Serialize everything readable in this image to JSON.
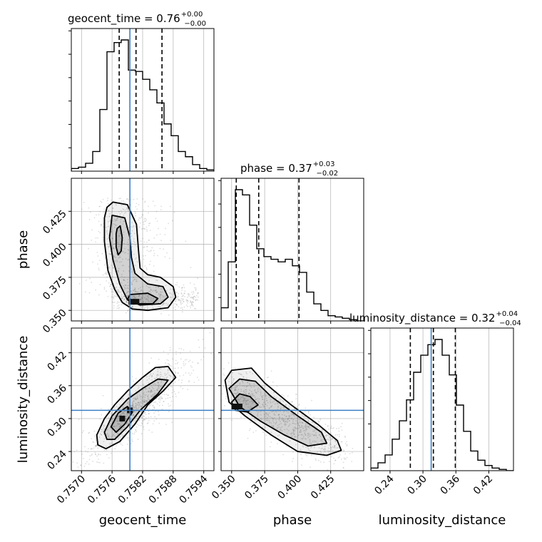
{
  "colors": {
    "truth": "#3b7fc4",
    "hist": "#000000",
    "grid": "#b0b0b0",
    "scatter": "#7a7a7a"
  },
  "parameters": [
    "geocent_time",
    "phase",
    "luminosity_distance"
  ],
  "titles": [
    {
      "text": "geocent_time = 0.76",
      "sup": "+0.00",
      "sub": "−0.00"
    },
    {
      "text": "phase = 0.37",
      "sup": "+0.03",
      "sub": "−0.02"
    },
    {
      "text": "luminosity_distance = 0.32",
      "sup": "+0.04",
      "sub": "−0.04"
    }
  ],
  "axis_labels": {
    "x": [
      "geocent_time",
      "phase",
      "luminosity_distance"
    ],
    "y": [
      "phase",
      "luminosity_distance"
    ]
  },
  "chart_data": {
    "type": "corner",
    "grid": true,
    "parameters": [
      {
        "name": "geocent_time",
        "range": [
          0.7568,
          0.7596
        ],
        "ticks": [
          0.757,
          0.7576,
          0.7582,
          0.7588,
          0.7594
        ],
        "tick_labels": [
          "0.7570",
          "0.7576",
          "0.7582",
          "0.7588",
          "0.7594"
        ],
        "truth": 0.75795,
        "quantiles": [
          0.75774,
          0.75807,
          0.75858
        ],
        "hist": [
          0.02,
          0.03,
          0.06,
          0.15,
          0.47,
          0.91,
          0.98,
          1.0,
          0.77,
          0.76,
          0.7,
          0.62,
          0.52,
          0.36,
          0.27,
          0.15,
          0.11,
          0.05,
          0.02,
          0.01
        ]
      },
      {
        "name": "phase",
        "range": [
          0.342,
          0.45
        ],
        "ticks": [
          0.35,
          0.375,
          0.4,
          0.425
        ],
        "tick_labels": [
          "0.350",
          "0.375",
          "0.400",
          "0.425"
        ],
        "quantiles": [
          0.3535,
          0.3705,
          0.401
        ],
        "hist": [
          0.1,
          0.45,
          1.0,
          0.96,
          0.73,
          0.55,
          0.49,
          0.47,
          0.45,
          0.47,
          0.42,
          0.37,
          0.22,
          0.13,
          0.08,
          0.04,
          0.03,
          0.02,
          0.01,
          0.0
        ]
      },
      {
        "name": "luminosity_distance",
        "range": [
          0.205,
          0.465
        ],
        "ticks": [
          0.24,
          0.3,
          0.36,
          0.42
        ],
        "tick_labels": [
          "0.24",
          "0.30",
          "0.36",
          "0.42"
        ],
        "truth": 0.315,
        "quantiles": [
          0.277,
          0.319,
          0.359
        ],
        "hist": [
          0.02,
          0.06,
          0.12,
          0.24,
          0.38,
          0.54,
          0.75,
          0.88,
          0.96,
          1.0,
          0.88,
          0.73,
          0.5,
          0.3,
          0.15,
          0.08,
          0.04,
          0.02,
          0.01,
          0.0
        ]
      }
    ],
    "joint": [
      {
        "x": "geocent_time",
        "y": "phase",
        "contours": [
          [
            [
              0.7575,
              0.428
            ],
            [
              0.75762,
              0.432
            ],
            [
              0.7579,
              0.43
            ],
            [
              0.75808,
              0.415
            ],
            [
              0.75812,
              0.395
            ],
            [
              0.75815,
              0.382
            ],
            [
              0.7583,
              0.377
            ],
            [
              0.75855,
              0.375
            ],
            [
              0.7588,
              0.368
            ],
            [
              0.75885,
              0.36
            ],
            [
              0.7587,
              0.352
            ],
            [
              0.7583,
              0.35
            ],
            [
              0.758,
              0.351
            ],
            [
              0.7578,
              0.356
            ],
            [
              0.75765,
              0.366
            ],
            [
              0.75752,
              0.38
            ],
            [
              0.75745,
              0.402
            ],
            [
              0.75745,
              0.42
            ]
          ],
          [
            [
              0.7576,
              0.422
            ],
            [
              0.75785,
              0.42
            ],
            [
              0.75795,
              0.405
            ],
            [
              0.75798,
              0.39
            ],
            [
              0.75805,
              0.378
            ],
            [
              0.7583,
              0.37
            ],
            [
              0.7586,
              0.368
            ],
            [
              0.7587,
              0.36
            ],
            [
              0.75855,
              0.355
            ],
            [
              0.75815,
              0.354
            ],
            [
              0.7579,
              0.358
            ],
            [
              0.75775,
              0.37
            ],
            [
              0.75762,
              0.388
            ],
            [
              0.75755,
              0.405
            ]
          ],
          [
            [
              0.7577,
              0.412
            ],
            [
              0.75776,
              0.414
            ],
            [
              0.7578,
              0.405
            ],
            [
              0.75778,
              0.395
            ],
            [
              0.75772,
              0.392
            ],
            [
              0.75768,
              0.398
            ],
            [
              0.75768,
              0.408
            ]
          ],
          [
            [
              0.75795,
              0.362
            ],
            [
              0.7583,
              0.363
            ],
            [
              0.7585,
              0.359
            ],
            [
              0.7584,
              0.355
            ],
            [
              0.75805,
              0.355
            ],
            [
              0.7579,
              0.358
            ]
          ]
        ]
      },
      {
        "x": "geocent_time",
        "y": "luminosity_distance",
        "contours": [
          [
            [
              0.7573,
              0.27
            ],
            [
              0.75745,
              0.3
            ],
            [
              0.75765,
              0.325
            ],
            [
              0.7579,
              0.35
            ],
            [
              0.7582,
              0.375
            ],
            [
              0.75845,
              0.393
            ],
            [
              0.7587,
              0.395
            ],
            [
              0.75885,
              0.375
            ],
            [
              0.7586,
              0.35
            ],
            [
              0.7583,
              0.325
            ],
            [
              0.75805,
              0.29
            ],
            [
              0.75775,
              0.258
            ],
            [
              0.75748,
              0.245
            ],
            [
              0.75732,
              0.252
            ]
          ],
          [
            [
              0.75745,
              0.275
            ],
            [
              0.7576,
              0.305
            ],
            [
              0.7579,
              0.335
            ],
            [
              0.7582,
              0.355
            ],
            [
              0.7585,
              0.372
            ],
            [
              0.7587,
              0.37
            ],
            [
              0.7585,
              0.345
            ],
            [
              0.75815,
              0.315
            ],
            [
              0.7579,
              0.285
            ],
            [
              0.75765,
              0.262
            ],
            [
              0.7575,
              0.262
            ]
          ],
          [
            [
              0.75758,
              0.285
            ],
            [
              0.75772,
              0.31
            ],
            [
              0.7579,
              0.322
            ],
            [
              0.758,
              0.312
            ],
            [
              0.75785,
              0.29
            ],
            [
              0.75768,
              0.275
            ]
          ]
        ]
      },
      {
        "x": "phase",
        "y": "luminosity_distance",
        "contours": [
          [
            [
              0.345,
              0.37
            ],
            [
              0.35,
              0.388
            ],
            [
              0.365,
              0.392
            ],
            [
              0.375,
              0.365
            ],
            [
              0.395,
              0.325
            ],
            [
              0.415,
              0.29
            ],
            [
              0.43,
              0.26
            ],
            [
              0.433,
              0.242
            ],
            [
              0.422,
              0.233
            ],
            [
              0.4,
              0.24
            ],
            [
              0.38,
              0.27
            ],
            [
              0.36,
              0.305
            ],
            [
              0.348,
              0.33
            ]
          ],
          [
            [
              0.348,
              0.355
            ],
            [
              0.356,
              0.372
            ],
            [
              0.368,
              0.368
            ],
            [
              0.38,
              0.34
            ],
            [
              0.4,
              0.305
            ],
            [
              0.418,
              0.275
            ],
            [
              0.422,
              0.255
            ],
            [
              0.408,
              0.25
            ],
            [
              0.39,
              0.27
            ],
            [
              0.372,
              0.295
            ],
            [
              0.356,
              0.322
            ]
          ],
          [
            [
              0.35,
              0.33
            ],
            [
              0.356,
              0.345
            ],
            [
              0.364,
              0.34
            ],
            [
              0.37,
              0.325
            ],
            [
              0.362,
              0.312
            ],
            [
              0.353,
              0.315
            ]
          ]
        ]
      }
    ]
  }
}
